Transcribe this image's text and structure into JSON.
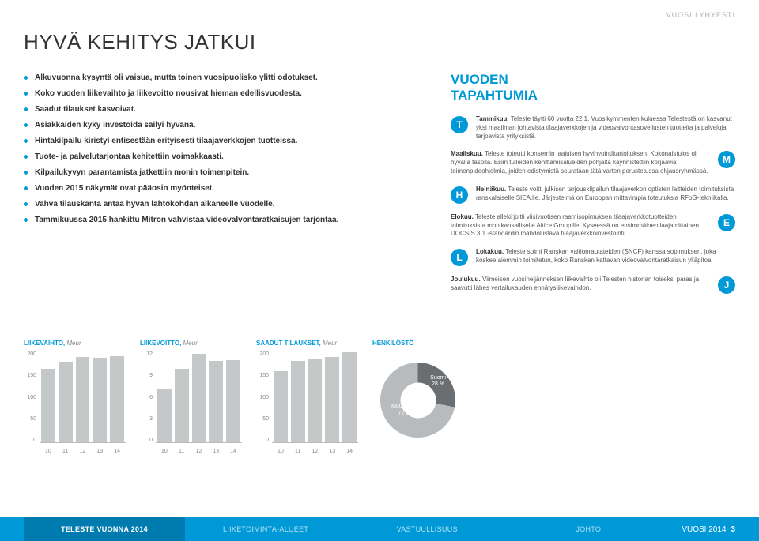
{
  "header": {
    "section_label": "VUOSI LYHYESTI"
  },
  "title": "HYVÄ KEHITYS JATKUI",
  "bullets": [
    "Alkuvuonna kysyntä oli vaisua, mutta toinen vuosipuolisko ylitti odotukset.",
    "Koko vuoden liikevaihto ja liikevoitto nousivat hieman edellisvuodesta.",
    "Saadut tilaukset kasvoivat.",
    "Asiakkaiden kyky investoida säilyi hyvänä.",
    "Hintakilpailu kiristyi entisestään erityisesti tilaajaverkkojen tuotteissa.",
    "Tuote- ja palvelutarjontaa kehitettiin voimakkaasti.",
    "Kilpailukyvyn parantamista jatkettiin monin toimenpitein.",
    "Vuoden 2015 näkymät ovat pääosin myönteiset.",
    "Vahva tilauskanta antaa hyvän lähtökohdan alkaneelle vuodelle.",
    "Tammikuussa 2015 hankittu Mitron vahvistaa videovalvontaratkaisujen tarjontaa."
  ],
  "right": {
    "title": "VUODEN\nTAPAHTUMIA",
    "events": [
      {
        "badge": "T",
        "color": "#0099d8",
        "side": "left",
        "strong": "Tammikuu.",
        "text": " Teleste täytti 60 vuotta 22.1. Vuosikymmenten kuluessa Telestestä on kasvanut yksi maailman johtavista tilaajaverkkojen ja videovalvontasovellusten tuotteita ja palveluja tarjoavista yrityksistä."
      },
      {
        "badge": "M",
        "color": "#0099d8",
        "side": "right",
        "strong": "Maaliskuu.",
        "text": " Teleste toteutti konsernin laajuisen hyvinvointikartoituksen. Kokonaistulos oli hyvällä tasolla. Esiin tulleiden kehittämisalueiden pohjalta käynnistettiin korjaavia toimenpideohjelmia, joiden edistymistä seurataan tätä varten perustetussa ohjausryhmässä."
      },
      {
        "badge": "H",
        "color": "#0099d8",
        "side": "left",
        "strong": "Heinäkuu.",
        "text": " Teleste voitti julkisen tarjouskilpailun tilaajaverkon optisten laitteiden toimituksista ranskalaiselle SIEA:lle. Järjestelmä on Euroopan mittavimpia toteutuksia RFoG-tekniikalla."
      },
      {
        "badge": "E",
        "color": "#0099d8",
        "side": "right",
        "strong": "Elokuu.",
        "text": " Teleste allekirjoitti viisivuotisen raamisopimuksen tilaajaverkkotuotteiden toimituksista monikansalliselle Altice Groupille. Kyseessä on ensimmäinen laajamittainen DOCSIS 3.1 -standardin mahdollistava tilaajaverkkoinvestointi."
      },
      {
        "badge": "L",
        "color": "#0099d8",
        "side": "left",
        "strong": "Lokakuu.",
        "text": " Teleste solmi Ranskan valtionrautateiden (SNCF) kanssa sopimuksen, joka koskee aiemmin toimitetun, koko Ranskan kattavan videovalvontaratkaisun ylläpitoa."
      },
      {
        "badge": "J",
        "color": "#0099d8",
        "side": "right",
        "strong": "Joulukuu.",
        "text": " Viimeisen vuosineljänneksen liikevaihto oli Telesten historian toiseksi paras ja saavutti lähes vertailukauden ennätysliikevaihdon."
      }
    ]
  },
  "charts": {
    "liikevaihto": {
      "title": "LIIKEVAIHTO,",
      "unit": "Meur",
      "ymax": 200,
      "yticks": [
        "200",
        "150",
        "100",
        "50",
        "0"
      ],
      "categories": [
        "10",
        "11",
        "12",
        "13",
        "14"
      ],
      "values": [
        168,
        184,
        194,
        192,
        197
      ],
      "bar_color": "#c5c8c9"
    },
    "liikevoitto": {
      "title": "LIIKEVOITTO,",
      "unit": "Meur",
      "ymax": 12,
      "yticks": [
        "12",
        "9",
        "6",
        "3",
        "0"
      ],
      "categories": [
        "10",
        "11",
        "12",
        "13",
        "14"
      ],
      "values": [
        7.4,
        10.1,
        12.1,
        11.1,
        11.2
      ],
      "bar_color": "#c5c8c9"
    },
    "tilaukset": {
      "title": "SAADUT TILAUKSET,",
      "unit": "Meur",
      "ymax": 200,
      "yticks": [
        "200",
        "150",
        "100",
        "50",
        "0"
      ],
      "categories": [
        "10",
        "11",
        "12",
        "13",
        "14"
      ],
      "values": [
        163,
        185,
        189,
        195,
        205
      ],
      "bar_color": "#c5c8c9"
    },
    "henkilosto": {
      "title": "HENKILÖSTÖ",
      "suomi_label": "Suomi",
      "suomi_pct": "28 %",
      "muut_label": "Muut maat",
      "muut_pct": "72 %",
      "suomi_deg": 100.8,
      "color_suomi": "#6b6e70",
      "color_muut": "#b7bbbd"
    }
  },
  "footer": {
    "tabs": [
      "TELESTE VUONNA 2014",
      "LIIKETOIMINTA-ALUEET",
      "VASTUULLISUUS",
      "JOHTO"
    ],
    "active_index": 0,
    "right_label": "VUOSI 2014",
    "page_num": "3"
  }
}
